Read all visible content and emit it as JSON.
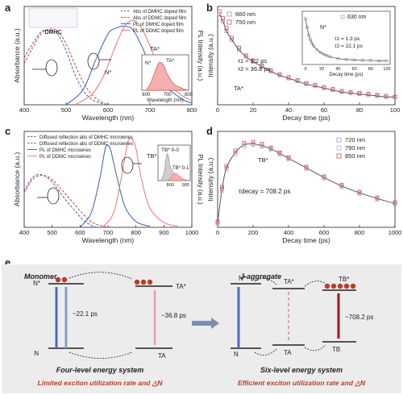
{
  "panel_labels": [
    "a",
    "b",
    "c",
    "d",
    "e"
  ],
  "chart_data": [
    {
      "panel": "a",
      "type": "line",
      "xlabel": "Wavelength (nm)",
      "ylabel": "Absorbance (a.u.)",
      "y2label": "PL Intensity (a.u.)",
      "xlim": [
        400,
        800
      ],
      "xticks": [
        400,
        500,
        600,
        700,
        800
      ],
      "molecule_label": "DMHC",
      "legend": [
        {
          "name": "Abs of DMHC doped film",
          "color": "#4a6bbf",
          "dash": true
        },
        {
          "name": "Abs of DDMC doped film",
          "color": "#e24a4a",
          "dash": true
        },
        {
          "name": "PL of DMHC doped film",
          "color": "#4a6bbf",
          "dash": false
        },
        {
          "name": "PL of DDMC doped film",
          "color": "#f08080",
          "dash": false
        }
      ],
      "series": [
        {
          "name": "Abs of DMHC doped film",
          "x": [
            400,
            420,
            440,
            460,
            480,
            500,
            520,
            540,
            560,
            580,
            600
          ],
          "y": [
            0.48,
            0.62,
            0.74,
            0.76,
            0.72,
            0.55,
            0.32,
            0.15,
            0.06,
            0.02,
            0.0
          ]
        },
        {
          "name": "Abs of DDMC doped film",
          "x": [
            400,
            420,
            440,
            460,
            480,
            500,
            520,
            540,
            560,
            580,
            600
          ],
          "y": [
            0.42,
            0.58,
            0.72,
            0.77,
            0.75,
            0.62,
            0.42,
            0.24,
            0.11,
            0.04,
            0.0
          ]
        },
        {
          "name": "PL of DMHC doped film",
          "x": [
            500,
            540,
            570,
            600,
            620,
            640,
            660,
            680,
            700,
            740,
            780,
            800
          ],
          "y": [
            0.0,
            0.15,
            0.45,
            0.72,
            0.78,
            0.8,
            0.76,
            0.6,
            0.42,
            0.18,
            0.05,
            0.02
          ]
        },
        {
          "name": "PL of DDMC doped film",
          "x": [
            520,
            560,
            590,
            620,
            640,
            660,
            680,
            700,
            720,
            760,
            800
          ],
          "y": [
            0.0,
            0.1,
            0.3,
            0.62,
            0.8,
            0.86,
            0.78,
            0.6,
            0.4,
            0.15,
            0.04
          ]
        }
      ],
      "annotations": [
        "TA*",
        "N*"
      ],
      "inset": {
        "xlabel": "Wavelength (nm)",
        "xticks": [
          600,
          700,
          800
        ],
        "labels": [
          "N*",
          "TA*"
        ]
      }
    },
    {
      "panel": "b",
      "type": "scatter",
      "xlabel": "Decay time (ps)",
      "ylabel": "Intensity (a.u.)",
      "xlim": [
        0,
        100
      ],
      "xticks": [
        0,
        20,
        40,
        60,
        80,
        100
      ],
      "series": [
        {
          "name": "660 nm",
          "marker": "square",
          "color": "#8a9bc4",
          "x": [
            1,
            3,
            5,
            8,
            12,
            16,
            20,
            25,
            30,
            35,
            40,
            45,
            50,
            55,
            60,
            65,
            70,
            75,
            80,
            85,
            90,
            95,
            100
          ],
          "y": [
            0.92,
            0.85,
            0.75,
            0.66,
            0.56,
            0.49,
            0.44,
            0.39,
            0.34,
            0.3,
            0.27,
            0.24,
            0.21,
            0.19,
            0.17,
            0.15,
            0.13,
            0.12,
            0.11,
            0.1,
            0.09,
            0.08,
            0.08
          ]
        },
        {
          "name": "750 nm",
          "marker": "square",
          "color": "#e24a4a",
          "x": [
            1,
            3,
            5,
            8,
            12,
            16,
            20,
            25,
            30,
            35,
            40,
            45,
            50,
            55,
            60,
            65,
            70,
            75,
            80,
            85,
            90,
            95,
            100
          ],
          "y": [
            0.95,
            0.88,
            0.78,
            0.68,
            0.58,
            0.5,
            0.45,
            0.4,
            0.35,
            0.31,
            0.28,
            0.25,
            0.22,
            0.2,
            0.18,
            0.16,
            0.14,
            0.13,
            0.12,
            0.11,
            0.1,
            0.09,
            0.08
          ]
        }
      ],
      "fit_text": [
        "τ1 = 3.2 ps",
        "τ2 = 36.8 ps"
      ],
      "annotations": [
        "TA*"
      ],
      "inset": {
        "series_name": "630 nm",
        "xlabel": "Decay time (ps)",
        "xticks": [
          0,
          20,
          40,
          60,
          80,
          100
        ],
        "fit_text": [
          "τ1 = 1.3 ps",
          "τ2 = 22.1 ps"
        ],
        "label": "N*"
      }
    },
    {
      "panel": "c",
      "type": "line",
      "xlabel": "Wavelength (nm)",
      "ylabel": "Absorbance (a.u.)",
      "y2label": "PL Intensity (a.u.)",
      "xlim": [
        400,
        1000
      ],
      "xticks": [
        400,
        500,
        600,
        700,
        800,
        900,
        1000
      ],
      "legend": [
        {
          "name": "Diffused reflection abs of DMHC microwires",
          "color": "#4a6bbf",
          "dash": true
        },
        {
          "name": "Diffused reflection abs of DDMC microwires",
          "color": "#e24a4a",
          "dash": true
        },
        {
          "name": "PL of DMHC microwires",
          "color": "#4a6bbf",
          "dash": false
        },
        {
          "name": "PL of DDMC microwires",
          "color": "#f08080",
          "dash": false
        }
      ],
      "series": [
        {
          "name": "Diffused reflection abs of DMHC microwires",
          "x": [
            400,
            430,
            460,
            490,
            520,
            550,
            580,
            610,
            640,
            660
          ],
          "y": [
            0.38,
            0.52,
            0.55,
            0.5,
            0.4,
            0.28,
            0.18,
            0.08,
            0.02,
            0.0
          ]
        },
        {
          "name": "Diffused reflection abs of DDMC microwires",
          "x": [
            400,
            430,
            460,
            490,
            520,
            550,
            580,
            610,
            640,
            670,
            700
          ],
          "y": [
            0.36,
            0.5,
            0.54,
            0.52,
            0.44,
            0.34,
            0.24,
            0.14,
            0.06,
            0.02,
            0.0
          ]
        },
        {
          "name": "PL of DMHC microwires",
          "x": [
            600,
            640,
            670,
            690,
            700,
            710,
            730,
            760,
            800,
            850
          ],
          "y": [
            0.0,
            0.15,
            0.5,
            0.82,
            0.85,
            0.8,
            0.55,
            0.22,
            0.06,
            0.01
          ]
        },
        {
          "name": "PL of DDMC microwires",
          "x": [
            680,
            720,
            750,
            770,
            785,
            800,
            820,
            850,
            900,
            950
          ],
          "y": [
            0.0,
            0.15,
            0.55,
            0.88,
            0.92,
            0.82,
            0.5,
            0.2,
            0.05,
            0.01
          ]
        }
      ],
      "annotations": [
        "TB*"
      ],
      "inset": {
        "xticks": [
          800,
          900
        ],
        "labels": [
          "TB* 0-0",
          "TB* 0-1"
        ]
      }
    },
    {
      "panel": "d",
      "type": "scatter",
      "xlabel": "Decay time (ps)",
      "ylabel": "Intensity (a.u.)",
      "xlim": [
        0,
        1000
      ],
      "xticks": [
        0,
        200,
        400,
        600,
        800,
        1000
      ],
      "series": [
        {
          "name": "720 nm",
          "marker": "square",
          "color": "#8a9bc4",
          "x": [
            0,
            25,
            50,
            100,
            150,
            200,
            250,
            300,
            350,
            400,
            500,
            600,
            700,
            800,
            900,
            1000
          ],
          "y": [
            0.05,
            0.4,
            0.62,
            0.78,
            0.86,
            0.87,
            0.85,
            0.82,
            0.77,
            0.72,
            0.62,
            0.52,
            0.43,
            0.36,
            0.3,
            0.25
          ]
        },
        {
          "name": "790 nm",
          "marker": "square",
          "color": "#b0b8d0",
          "x": [
            0,
            25,
            50,
            100,
            150,
            200,
            250,
            300,
            350,
            400,
            500,
            600,
            700,
            800,
            900,
            1000
          ],
          "y": [
            0.04,
            0.38,
            0.6,
            0.76,
            0.84,
            0.86,
            0.84,
            0.81,
            0.76,
            0.71,
            0.61,
            0.51,
            0.42,
            0.35,
            0.29,
            0.24
          ]
        },
        {
          "name": "850 nm",
          "marker": "square",
          "color": "#e24a4a",
          "x": [
            0,
            25,
            50,
            100,
            150,
            200,
            250,
            300,
            350,
            400,
            500,
            600,
            700,
            800,
            900,
            1000
          ],
          "y": [
            0.06,
            0.42,
            0.64,
            0.8,
            0.88,
            0.89,
            0.87,
            0.83,
            0.78,
            0.73,
            0.63,
            0.53,
            0.44,
            0.37,
            0.31,
            0.26
          ]
        }
      ],
      "fit_text": "τdecay = 708.2 ps",
      "annotations": [
        "TB*"
      ]
    }
  ],
  "diagram_e": {
    "left_title": "Monomer",
    "right_title": "J-aggregate",
    "left_levels": [
      "N*",
      "TA*",
      "N",
      "TA"
    ],
    "right_levels": [
      "N*",
      "TA*",
      "TB*",
      "N",
      "TA",
      "TB"
    ],
    "left_times": [
      "~22.1 ps",
      "~36.8 ps"
    ],
    "right_time": "~708.2 ps",
    "left_system": "Four-level energy system",
    "right_system": "Six-level energy system",
    "left_caption": "Limited exciton utilization rate and △N",
    "right_caption": "Efficient exciton utilization rate and △N",
    "colors": {
      "blue": "#4a6bbf",
      "red": "#a4162a",
      "pink": "#e8a0a8",
      "bg": "#ececec",
      "caption_red": "#c0392b"
    }
  }
}
